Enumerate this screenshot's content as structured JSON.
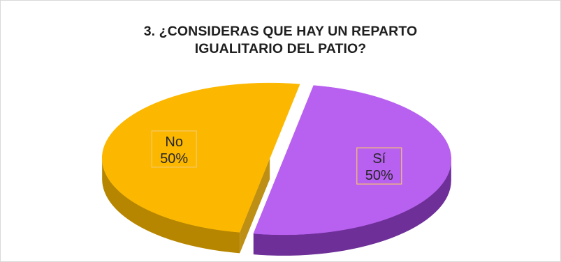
{
  "chart_data": {
    "type": "pie",
    "style": "3d-exploded",
    "title_line1": "3. ¿CONSIDERAS QUE  HAY UN REPARTO",
    "title_line2": "IGUALITARIO DEL PATIO?",
    "slices": [
      {
        "label": "Sí",
        "percent_text": "50%",
        "value": 50,
        "color_top": "#b860f0",
        "color_side": "#6e2f99"
      },
      {
        "label": "No",
        "percent_text": "50%",
        "value": 50,
        "color_top": "#fcb800",
        "color_side": "#b78600"
      }
    ],
    "data_label_border_color": "#f5c86a",
    "legend": "none"
  }
}
